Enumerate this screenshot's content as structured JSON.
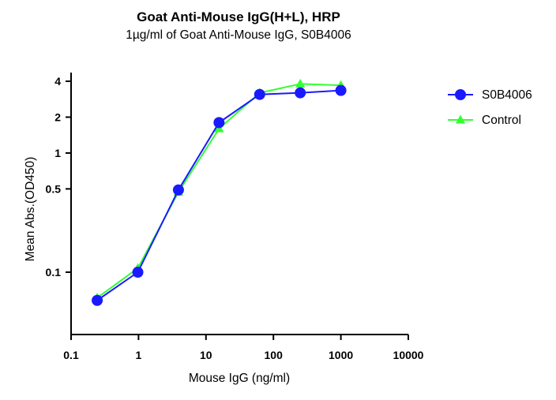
{
  "chart_data": {
    "type": "line",
    "title": "Goat Anti-Mouse IgG(H+L), HRP",
    "subtitle": "1µg/ml of Goat Anti-Mouse IgG, S0B4006",
    "xlabel": "Mouse IgG (ng/ml)",
    "ylabel": "Mean Abs.(OD450)",
    "xscale": "log",
    "yscale": "log",
    "xlim": [
      0.1,
      10000
    ],
    "ylim": [
      0.03,
      4
    ],
    "xticks": [
      0.1,
      1,
      10,
      100,
      1000,
      10000
    ],
    "xtick_labels": [
      "0.1",
      "1",
      "10",
      "100",
      "1000",
      "10000"
    ],
    "yticks": [
      0.1,
      0.5,
      1,
      2,
      4
    ],
    "ytick_labels": [
      "0.1",
      "0.5",
      "1",
      "2",
      "4"
    ],
    "legend_position": "top-right",
    "series": [
      {
        "name": "S0B4006",
        "color": "#1a1aff",
        "marker": "circle",
        "x": [
          0.244,
          0.977,
          3.906,
          15.625,
          62.5,
          250,
          1000
        ],
        "y": [
          0.058,
          0.1,
          0.49,
          1.8,
          3.1,
          3.2,
          3.35
        ]
      },
      {
        "name": "Control",
        "color": "#33ff33",
        "marker": "triangle",
        "x": [
          0.244,
          0.977,
          3.906,
          15.625,
          62.5,
          250,
          1000
        ],
        "y": [
          0.061,
          0.108,
          0.47,
          1.6,
          3.2,
          3.8,
          3.7
        ]
      }
    ]
  }
}
